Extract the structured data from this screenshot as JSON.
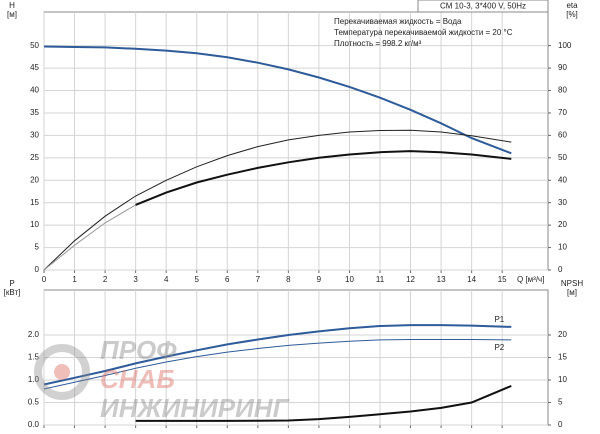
{
  "chart_data": [
    {
      "type": "line",
      "ylabel": "H",
      "ylabel_unit": "[м]",
      "y2label": "eta",
      "y2label_unit": "[%]",
      "xlabel": "Q [м³/ч]",
      "model": "CM 10-3, 3*400 V, 50Hz",
      "notes": [
        "Перекачиваемая жидкость = Вода",
        "Температура перекачиваемой жидкости = 20 °C",
        "Плотность = 998.2 кг/м³"
      ],
      "x": [
        0,
        1,
        2,
        3,
        4,
        5,
        6,
        7,
        8,
        9,
        10,
        11,
        12,
        13,
        14,
        15.3
      ],
      "xlim": [
        0,
        16.5
      ],
      "xticks": [
        0,
        1,
        2,
        3,
        4,
        5,
        6,
        7,
        8,
        9,
        10,
        11,
        12,
        13,
        14,
        15
      ],
      "ylim": [
        0,
        57.5
      ],
      "yticks": [
        0,
        5,
        10,
        15,
        20,
        25,
        30,
        35,
        40,
        45,
        50
      ],
      "y2lim": [
        0,
        115
      ],
      "y2ticks": [
        0,
        10,
        20,
        30,
        40,
        50,
        60,
        70,
        80,
        90,
        100
      ],
      "grid": true,
      "series": [
        {
          "color": "#2e5b9a",
          "width": 2,
          "values": [
            49.8,
            49.7,
            49.6,
            49.3,
            48.9,
            48.3,
            47.4,
            46.2,
            44.7,
            42.9,
            40.8,
            38.4,
            35.7,
            32.7,
            29.4,
            26
          ]
        },
        {
          "color": "#222222",
          "width": 1,
          "axis": "y2",
          "values": [
            0,
            13,
            24,
            33,
            40,
            46,
            51,
            55,
            58,
            60,
            61.5,
            62.2,
            62.3,
            61.5,
            59.8,
            57
          ]
        },
        {
          "color": "#999999",
          "width": 1,
          "axis": "y2",
          "values": [
            0,
            11,
            21,
            29,
            null,
            null,
            null,
            null,
            null,
            null,
            null,
            null,
            null,
            null,
            null,
            null
          ]
        },
        {
          "color": "#111111",
          "width": 2,
          "axis": "y2",
          "values": [
            null,
            null,
            null,
            29,
            34.5,
            39,
            42.5,
            45.5,
            48,
            50,
            51.5,
            52.5,
            53,
            52.5,
            51.5,
            49.5
          ]
        }
      ]
    },
    {
      "type": "line",
      "ylabel": "P",
      "ylabel_unit": "[кВт]",
      "y2label": "NPSH",
      "y2label_unit": "[м]",
      "x": [
        0,
        1,
        2,
        3,
        4,
        5,
        6,
        7,
        8,
        9,
        10,
        11,
        12,
        13,
        14,
        15.3
      ],
      "xlim": [
        0,
        16.5
      ],
      "xticks": [
        0,
        1,
        2,
        3,
        4,
        5,
        6,
        7,
        8,
        9,
        10,
        11,
        12,
        13,
        14,
        15
      ],
      "ylim": [
        0,
        3
      ],
      "yticks": [
        {
          "value": 0,
          "label": "0.0"
        },
        0.5,
        {
          "value": 1,
          "label": "1.0"
        },
        1.5,
        {
          "value": 2,
          "label": "2.0"
        }
      ],
      "y2lim": [
        0,
        30
      ],
      "y2ticks": [
        0,
        5,
        10,
        15,
        20
      ],
      "grid": true,
      "series": [
        {
          "name": "P1",
          "color": "#2e5b9a",
          "width": 2,
          "values": [
            0.9,
            1.05,
            1.2,
            1.37,
            1.52,
            1.66,
            1.79,
            1.9,
            2.0,
            2.08,
            2.15,
            2.2,
            2.22,
            2.22,
            2.21,
            2.18
          ]
        },
        {
          "name": "P2",
          "color": "#2e5b9a",
          "width": 1,
          "values": [
            0.8,
            0.95,
            1.1,
            1.26,
            1.4,
            1.52,
            1.62,
            1.7,
            1.77,
            1.82,
            1.86,
            1.89,
            1.9,
            1.9,
            1.9,
            1.89
          ]
        },
        {
          "color": "#111111",
          "width": 2,
          "axis": "y2",
          "values": [
            null,
            null,
            null,
            0.9,
            0.9,
            0.9,
            0.9,
            0.95,
            1,
            1.3,
            1.8,
            2.4,
            3,
            3.8,
            5,
            8.7
          ]
        }
      ]
    }
  ],
  "watermark": [
    "ПРОФ",
    "СНАБ",
    "ИНЖИНИРИНГ"
  ]
}
